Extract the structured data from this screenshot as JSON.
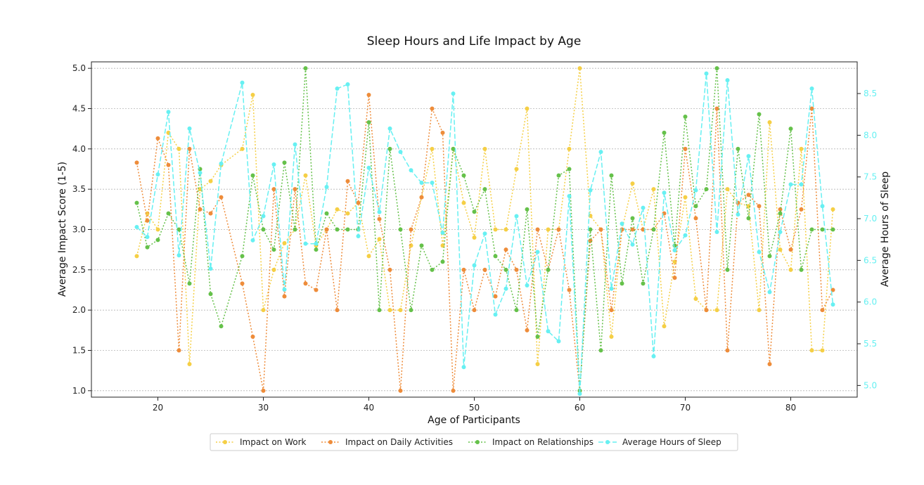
{
  "chart_data": {
    "type": "line",
    "title": "Sleep Hours and Life Impact by Age",
    "xlabel": "Age of Participants",
    "ylabel": "Average Impact Score (1-5)",
    "y2label": "Average Hours of Sleep",
    "xlim": [
      13.7,
      86.3
    ],
    "ylim": [
      0.92,
      5.08
    ],
    "y2lim": [
      4.86,
      8.88
    ],
    "xticks": [
      20,
      30,
      40,
      50,
      60,
      70,
      80
    ],
    "yticks": [
      1.0,
      1.5,
      2.0,
      2.5,
      3.0,
      3.5,
      4.0,
      4.5,
      5.0
    ],
    "y2ticks": [
      5.0,
      5.5,
      6.0,
      6.5,
      7.0,
      7.5,
      8.0,
      8.5
    ],
    "grid": "y",
    "legend_position": "bottom-center",
    "x": [
      18,
      19,
      20,
      21,
      22,
      23,
      24,
      25,
      26,
      28,
      29,
      30,
      31,
      32,
      33,
      34,
      35,
      36,
      37,
      38,
      39,
      40,
      41,
      42,
      43,
      44,
      45,
      46,
      47,
      48,
      49,
      50,
      51,
      52,
      53,
      54,
      55,
      56,
      57,
      58,
      59,
      60,
      61,
      62,
      63,
      64,
      65,
      66,
      67,
      68,
      69,
      70,
      71,
      72,
      73,
      74,
      75,
      76,
      77,
      78,
      79,
      80,
      81,
      82,
      83,
      84
    ],
    "series": [
      {
        "name": "Impact on Work",
        "axis": "left",
        "color": "#f5cf45",
        "style": "dotted",
        "values": [
          2.67,
          3.2,
          3.0,
          4.2,
          4.0,
          1.33,
          3.5,
          3.6,
          3.8,
          4.0,
          4.67,
          2.0,
          2.5,
          2.83,
          3.0,
          3.67,
          2.8,
          3.0,
          3.25,
          3.2,
          3.33,
          2.67,
          2.88,
          2.0,
          2.0,
          2.8,
          3.4,
          4.0,
          2.8,
          4.0,
          3.33,
          2.9,
          4.0,
          3.0,
          3.0,
          3.75,
          4.5,
          1.33,
          3.0,
          3.0,
          4.0,
          5.0,
          3.17,
          3.0,
          1.67,
          3.0,
          3.57,
          3.0,
          3.5,
          1.8,
          2.6,
          3.4,
          2.14,
          2.0,
          2.0,
          3.5,
          3.33,
          3.29,
          2.0,
          4.33,
          2.75,
          2.5,
          4.0,
          1.5,
          1.5,
          3.25
        ]
      },
      {
        "name": "Impact on Daily Activities",
        "axis": "left",
        "color": "#ee8c3a",
        "style": "dotted",
        "values": [
          3.83,
          3.11,
          4.13,
          3.8,
          1.5,
          4.0,
          3.25,
          3.2,
          3.4,
          2.33,
          1.67,
          1.0,
          3.5,
          2.17,
          3.5,
          2.33,
          2.25,
          3.0,
          2.0,
          3.6,
          3.33,
          4.67,
          3.13,
          2.5,
          1.0,
          3.0,
          3.4,
          4.5,
          4.2,
          1.0,
          2.5,
          2.0,
          2.5,
          2.17,
          2.75,
          2.5,
          1.75,
          3.0,
          2.5,
          3.0,
          2.25,
          1.0,
          2.86,
          3.0,
          2.0,
          3.0,
          3.0,
          3.0,
          3.0,
          3.2,
          2.4,
          4.0,
          3.14,
          2.0,
          4.5,
          1.5,
          3.33,
          3.43,
          3.29,
          1.33,
          3.25,
          2.75,
          3.25,
          4.5,
          2.0,
          2.25
        ]
      },
      {
        "name": "Impact on Relationships",
        "axis": "left",
        "color": "#65c14a",
        "style": "dotted",
        "values": [
          3.33,
          2.78,
          2.87,
          3.2,
          3.0,
          2.33,
          3.75,
          2.2,
          1.8,
          2.67,
          3.67,
          3.0,
          2.75,
          3.83,
          3.0,
          5.0,
          2.75,
          3.2,
          3.0,
          3.0,
          3.0,
          4.33,
          2.0,
          4.0,
          3.0,
          2.0,
          2.8,
          2.5,
          2.6,
          4.0,
          3.67,
          3.22,
          3.5,
          2.67,
          2.5,
          2.0,
          3.25,
          1.67,
          2.5,
          3.67,
          3.75,
          1.0,
          3.0,
          1.5,
          3.67,
          2.33,
          3.14,
          2.33,
          3.0,
          4.2,
          2.8,
          4.4,
          3.29,
          3.5,
          5.0,
          2.5,
          4.0,
          3.14,
          4.43,
          2.67,
          3.2,
          4.25,
          2.5,
          3.0,
          3.0,
          3.0
        ]
      },
      {
        "name": "Average Hours of Sleep",
        "axis": "right",
        "color": "#67f0f2",
        "style": "dashed",
        "values": [
          6.9,
          6.78,
          7.53,
          8.28,
          6.56,
          8.08,
          7.55,
          6.4,
          7.66,
          8.63,
          6.74,
          7.03,
          7.65,
          6.15,
          7.89,
          6.7,
          6.7,
          7.38,
          8.56,
          8.61,
          6.79,
          7.61,
          7.08,
          8.08,
          7.8,
          7.58,
          7.43,
          7.43,
          6.83,
          8.5,
          5.22,
          6.44,
          6.82,
          5.85,
          6.16,
          7.03,
          6.2,
          6.6,
          5.65,
          5.53,
          7.27,
          4.9,
          7.34,
          7.8,
          6.16,
          6.94,
          6.69,
          7.13,
          5.35,
          7.31,
          6.62,
          6.8,
          7.34,
          8.74,
          6.84,
          8.66,
          7.05,
          7.75,
          6.6,
          6.12,
          6.84,
          7.41,
          7.41,
          8.56,
          7.15,
          5.97
        ]
      }
    ]
  }
}
